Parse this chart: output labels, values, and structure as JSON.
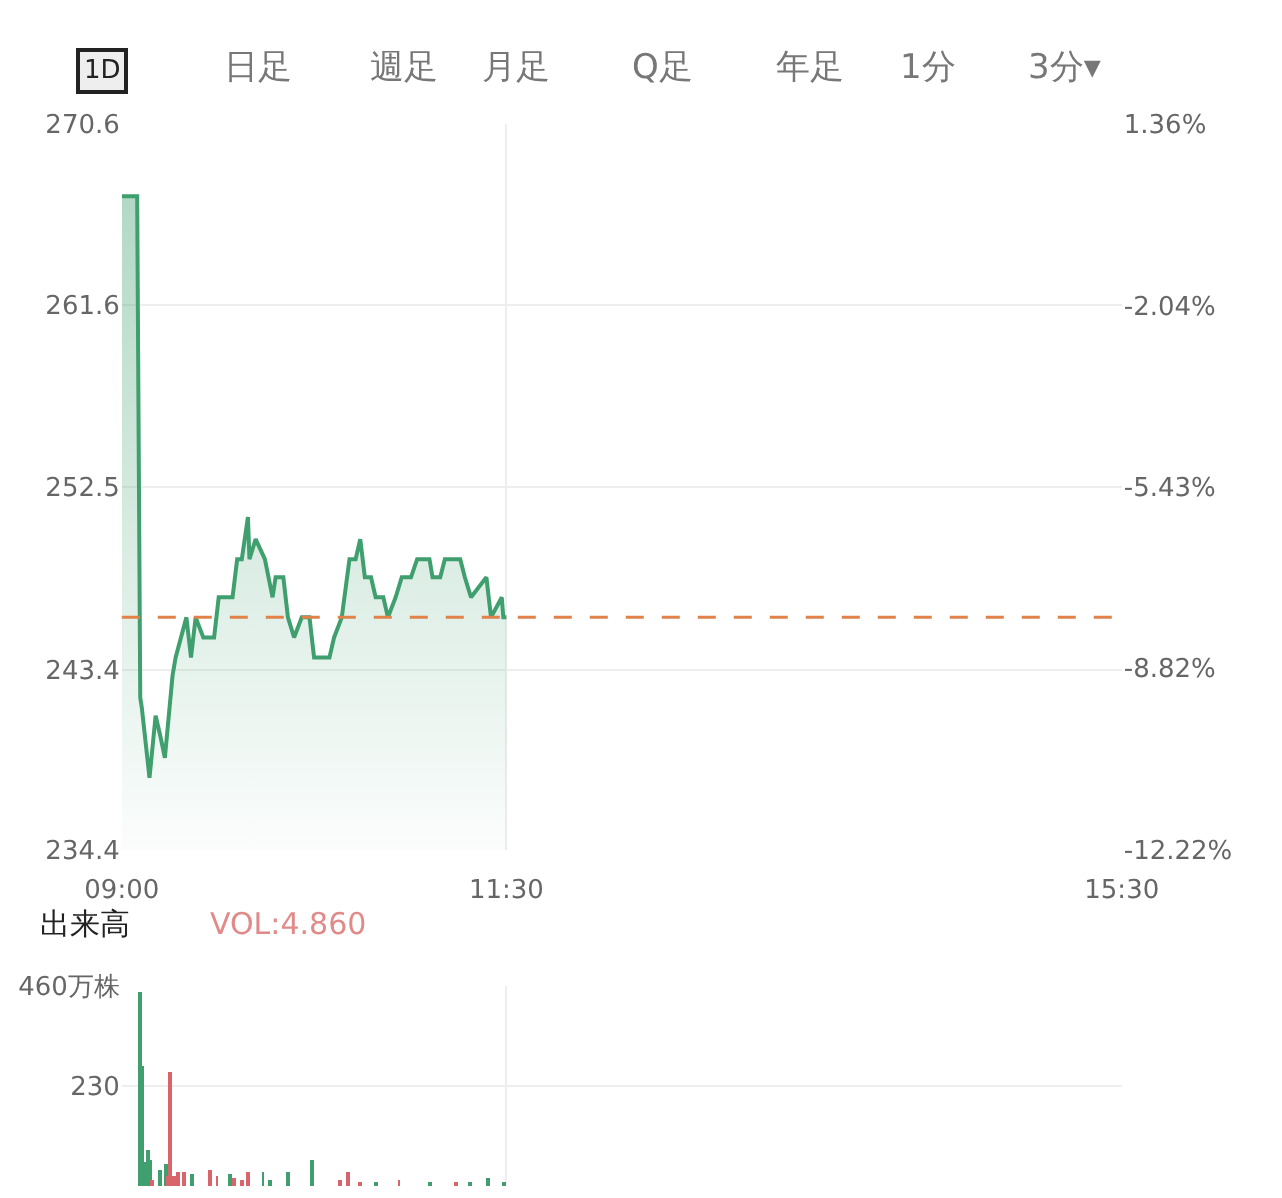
{
  "chart_data": [
    {
      "type": "area",
      "annotations": [
        "1D",
        "日足",
        "週足",
        "月足",
        "Q足",
        "年足",
        "1分",
        "3分▾"
      ],
      "x": [
        9,
        9.1,
        9.12,
        9.13,
        9.18,
        9.22,
        9.25,
        9.28,
        9.33,
        9.35,
        9.42,
        9.45,
        9.48,
        9.53,
        9.6,
        9.63,
        9.72,
        9.75,
        9.78,
        9.82,
        9.83,
        9.87,
        9.93,
        9.98,
        10,
        10.05,
        10.08,
        10.12,
        10.17,
        10.22,
        10.25,
        10.35,
        10.38,
        10.43,
        10.48,
        10.52,
        10.55,
        10.58,
        10.62,
        10.65,
        10.7,
        10.73,
        10.78,
        10.82,
        10.88,
        10.92,
        11,
        11.02,
        11.07,
        11.1,
        11.2,
        11.23,
        11.27,
        11.37,
        11.4,
        11.47,
        11.48,
        11.5
      ],
      "series": [
        {
          "color": "#3f9f6e",
          "values": [
            267.0,
            267.0,
            242.0,
            241.5,
            238.0,
            241.1,
            240.1,
            239.0,
            243.1,
            244.0,
            246.0,
            244.0,
            246.0,
            245.0,
            245.0,
            247.0,
            247.0,
            248.9,
            248.9,
            251.0,
            248.9,
            249.9,
            248.9,
            247.0,
            248.0,
            248.0,
            246.0,
            245.0,
            246.0,
            246.0,
            244.0,
            244.0,
            245.0,
            246.0,
            248.9,
            248.9,
            249.9,
            248.0,
            248.0,
            247.0,
            247.0,
            246.0,
            247.0,
            248.0,
            248.0,
            248.9,
            248.9,
            248.0,
            248.0,
            248.9,
            248.9,
            248.0,
            247.0,
            248.0,
            246.0,
            247.0,
            246.0,
            246.0
          ]
        }
      ],
      "xlim": [
        9,
        15.5
      ],
      "xticks": [
        {
          "value": 9,
          "label": "09:00"
        },
        {
          "value": 11.5,
          "label": "11:30"
        },
        {
          "value": 15.5,
          "label": "15:30"
        }
      ],
      "ylim": [
        234.4,
        270.6
      ],
      "yticks": [
        234.4,
        243.4,
        252.5,
        261.6,
        270.6
      ],
      "y2lim": [
        -12.22,
        1.36
      ],
      "y2ticks": [
        {
          "value": -12.22,
          "label": "-12.22%"
        },
        {
          "value": -8.82,
          "label": "-8.82%"
        },
        {
          "value": -5.43,
          "label": "-5.43%"
        },
        {
          "value": -2.04,
          "label": "-2.04%"
        },
        {
          "value": 1.36,
          "label": "1.36%"
        }
      ],
      "ref_lines": [
        {
          "axis": "y",
          "value": 246.0,
          "color": "#e0824a",
          "line_style": "dashed"
        }
      ],
      "grid": true
    },
    {
      "type": "bar",
      "title": "出来高",
      "annotations": [
        "VOL:4.860"
      ],
      "x": [
        9.117,
        9.133,
        9.15,
        9.167,
        9.183,
        9.2,
        9.25,
        9.283,
        9.3,
        9.317,
        9.333,
        9.367,
        9.4,
        9.45,
        9.567,
        9.617,
        9.7,
        9.733,
        9.783,
        9.817,
        9.917,
        9.967,
        10.083,
        10.233,
        10.417,
        10.467,
        10.55,
        10.65,
        10.8,
        11,
        11.167,
        11.267,
        11.383,
        11.483
      ],
      "series": [
        {
          "values": [
            445,
            276,
            54,
            84,
            58,
            15,
            38,
            49,
            23,
            261,
            23,
            31,
            31,
            28,
            38,
            23,
            26,
            18,
            15,
            31,
            34,
            15,
            31,
            61,
            12,
            34,
            8,
            8,
            15,
            8,
            8,
            8,
            18,
            8
          ],
          "colors": [
            "#3f9f6e",
            "#3f9f6e",
            "#3f9f6e",
            "#3f9f6e",
            "#3f9f6e",
            "#d9646a",
            "#3f9f6e",
            "#3f9f6e",
            "#d9646a",
            "#d9646a",
            "#d9646a",
            "#d9646a",
            "#d9646a",
            "#3f9f6e",
            "#d9646a",
            "#d9646a",
            "#3f9f6e",
            "#d9646a",
            "#d9646a",
            "#d9646a",
            "#3f9f6e",
            "#3f9f6e",
            "#3f9f6e",
            "#3f9f6e",
            "#d9646a",
            "#d9646a",
            "#d9646a",
            "#3f9f6e",
            "#d9646a",
            "#3f9f6e",
            "#d9646a",
            "#3f9f6e",
            "#3f9f6e",
            "#3f9f6e"
          ]
        }
      ],
      "xlim": [
        9,
        15.5
      ],
      "xticks": [
        {
          "value": 9,
          "label": null
        },
        {
          "value": 11.5,
          "label": null
        },
        {
          "value": 15.5,
          "label": null
        }
      ],
      "ylim": [
        0,
        460
      ],
      "yticks": [
        {
          "value": 460,
          "label": "460万株"
        },
        230
      ],
      "tick_labels": "y",
      "grid": true
    }
  ]
}
